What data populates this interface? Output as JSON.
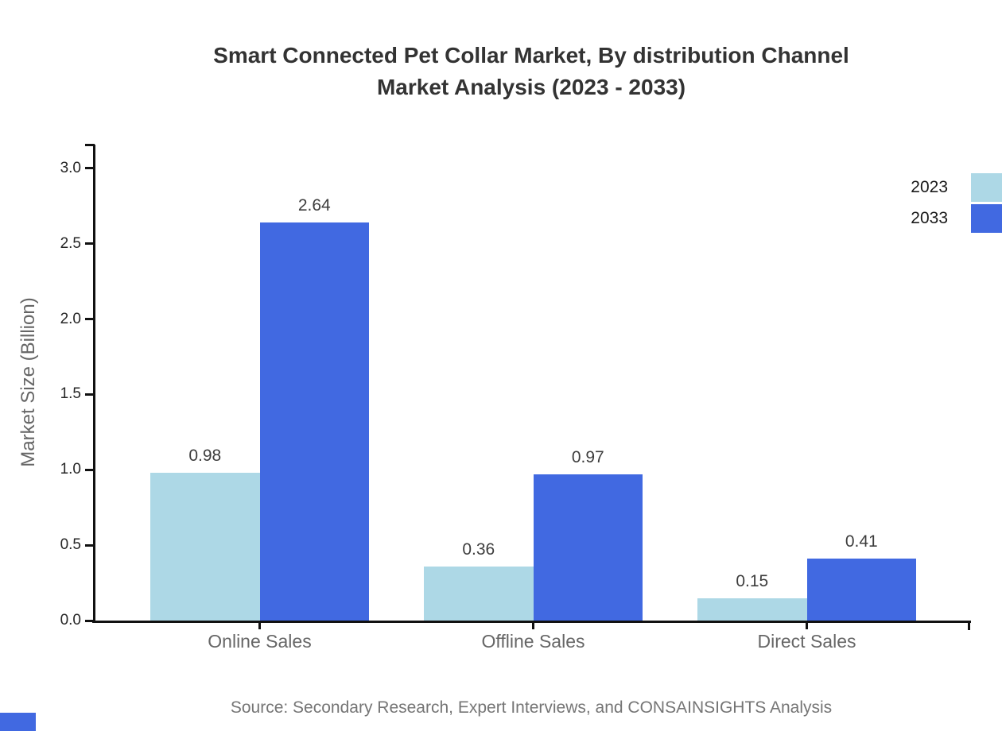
{
  "page": {
    "title_line1": "Smart Connected Pet Collar Market, By distribution Channel",
    "title_line2": "Market Analysis (2023 - 2033)",
    "source_note": "Source: Secondary Research, Expert Interviews, and CONSAINSIGHTS Analysis"
  },
  "chart_data": {
    "type": "bar",
    "title": "Smart Connected Pet Collar Market, By distribution Channel Market Analysis (2023 - 2033)",
    "categories": [
      "Online Sales",
      "Offline Sales",
      "Direct Sales"
    ],
    "series": [
      {
        "name": "2023",
        "color": "#ADD8E6",
        "values": [
          0.98,
          0.36,
          0.15
        ]
      },
      {
        "name": "2033",
        "color": "#4169E1",
        "values": [
          2.64,
          0.97,
          0.41
        ]
      }
    ],
    "xlabel": "",
    "ylabel": "Market Size (Billion)",
    "ylim": [
      0,
      3.16
    ],
    "yticks": [
      0.0,
      0.5,
      1.0,
      1.5,
      2.0,
      2.5,
      3.0
    ],
    "grid": false,
    "legend_position": "top-right outside",
    "value_labels": true
  },
  "colors": {
    "series_2023": "#ADD8E6",
    "series_2033": "#4169E1",
    "axis": "#111111",
    "title_text": "#333333",
    "tick_text": "#262626",
    "category_text": "#666666",
    "muted_text": "#757575",
    "brand_mark": "#4169E1"
  }
}
